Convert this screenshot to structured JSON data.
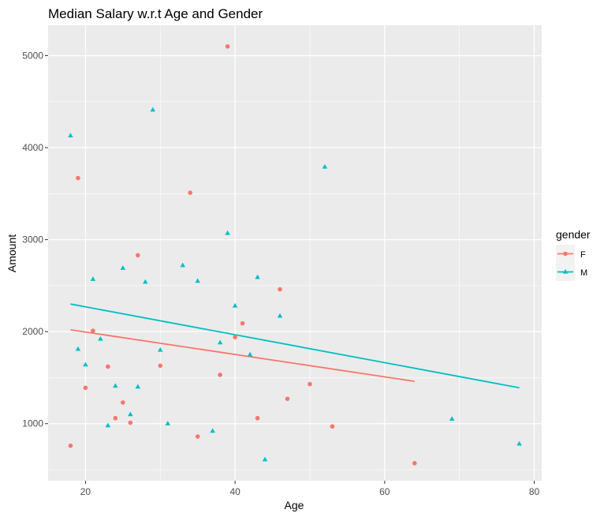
{
  "chart_data": {
    "type": "scatter",
    "title": "Median Salary w.r.t Age and Gender",
    "xlabel": "Age",
    "ylabel": "Amount",
    "xlim": [
      15,
      81
    ],
    "ylim": [
      380,
      5330
    ],
    "x_ticks": [
      20,
      40,
      60,
      80
    ],
    "y_ticks": [
      1000,
      2000,
      3000,
      4000,
      5000
    ],
    "grid": true,
    "legend": {
      "title": "gender",
      "position": "right"
    },
    "series": [
      {
        "name": "F",
        "color": "#F8766D",
        "marker": "circle",
        "points": [
          [
            18,
            760
          ],
          [
            19,
            3670
          ],
          [
            20,
            1390
          ],
          [
            21,
            2010
          ],
          [
            23,
            1620
          ],
          [
            24,
            1060
          ],
          [
            25,
            1230
          ],
          [
            26,
            1010
          ],
          [
            27,
            2830
          ],
          [
            30,
            1630
          ],
          [
            34,
            3510
          ],
          [
            35,
            860
          ],
          [
            38,
            1530
          ],
          [
            39,
            5100
          ],
          [
            40,
            1940
          ],
          [
            41,
            2090
          ],
          [
            43,
            1060
          ],
          [
            46,
            2460
          ],
          [
            47,
            1270
          ],
          [
            50,
            1430
          ],
          [
            53,
            970
          ],
          [
            64,
            570
          ]
        ],
        "trend": {
          "x": [
            18,
            64
          ],
          "y": [
            2020,
            1460
          ]
        }
      },
      {
        "name": "M",
        "color": "#00BFC4",
        "marker": "triangle",
        "points": [
          [
            18,
            4130
          ],
          [
            19,
            1810
          ],
          [
            20,
            1640
          ],
          [
            21,
            2570
          ],
          [
            22,
            1920
          ],
          [
            23,
            980
          ],
          [
            24,
            1410
          ],
          [
            25,
            2690
          ],
          [
            26,
            1100
          ],
          [
            27,
            1400
          ],
          [
            28,
            2540
          ],
          [
            29,
            4410
          ],
          [
            30,
            1800
          ],
          [
            31,
            1000
          ],
          [
            33,
            2720
          ],
          [
            35,
            2550
          ],
          [
            37,
            920
          ],
          [
            38,
            1880
          ],
          [
            39,
            3070
          ],
          [
            40,
            2280
          ],
          [
            42,
            1750
          ],
          [
            43,
            2590
          ],
          [
            44,
            610
          ],
          [
            46,
            2170
          ],
          [
            52,
            3790
          ],
          [
            69,
            1050
          ],
          [
            78,
            780
          ]
        ],
        "trend": {
          "x": [
            18,
            78
          ],
          "y": [
            2300,
            1390
          ]
        }
      }
    ]
  }
}
